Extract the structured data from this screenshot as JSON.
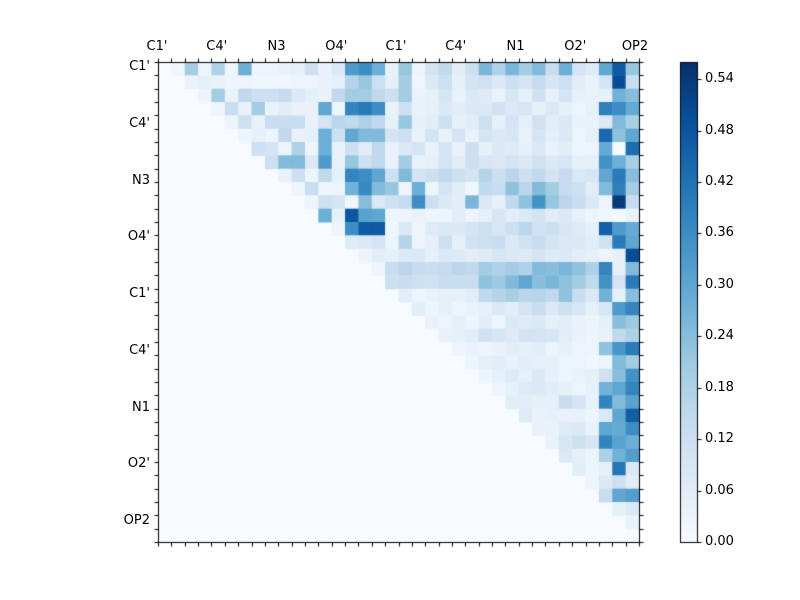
{
  "figure": {
    "background": "#ffffff",
    "axis_color": "#000000",
    "text_color": "#000000"
  },
  "heatmap": {
    "x_tick_labels": [
      "C1'",
      "C4'",
      "N3",
      "O4'",
      "C1'",
      "C4'",
      "N1",
      "O2'",
      "OP2"
    ],
    "y_tick_labels": [
      "C1'",
      "C4'",
      "N3",
      "O4'",
      "C1'",
      "C4'",
      "N1",
      "O2'",
      "OP2"
    ]
  },
  "colorbar": {
    "tick_labels": [
      "0.54",
      "0.48",
      "0.42",
      "0.36",
      "0.30",
      "0.24",
      "0.18",
      "0.12",
      "0.06",
      "0.00"
    ],
    "vmin": 0.0,
    "vmax": 0.56
  },
  "chart_data": {
    "type": "heatmap",
    "title": "",
    "xlabel": "",
    "ylabel": "",
    "colormap": "Blues",
    "colormap_anchors": [
      "#f7fbff",
      "#deebf7",
      "#c6dbef",
      "#9ecae1",
      "#6baed6",
      "#4292c6",
      "#2171b5",
      "#08519c",
      "#08306b"
    ],
    "vmin": 0.0,
    "vmax": 0.56,
    "n_rows": 36,
    "n_cols": 36,
    "matrix_form": "upper-triangular",
    "x_group_labels": [
      "C1'",
      "C4'",
      "N3",
      "O4'",
      "C1'",
      "C4'",
      "N1",
      "O2'",
      "OP2"
    ],
    "y_group_labels": [
      "C1'",
      "C4'",
      "N3",
      "O4'",
      "C1'",
      "C4'",
      "N1",
      "O2'",
      "OP2"
    ],
    "values": [
      [
        0,
        0.02,
        0.2,
        0.03,
        0.18,
        0.03,
        0.28,
        0.03,
        0.03,
        0.04,
        0.05,
        0.12,
        0.04,
        0.08,
        0.33,
        0.36,
        0.28,
        0.04,
        0.22,
        0.03,
        0.1,
        0.15,
        0.06,
        0.12,
        0.26,
        0.18,
        0.26,
        0.2,
        0.25,
        0.13,
        0.28,
        0.1,
        0.07,
        0.3,
        0.47,
        0.22
      ],
      [
        0,
        0,
        0.04,
        0.05,
        0.04,
        0.03,
        0.03,
        0.02,
        0.02,
        0.02,
        0.03,
        0.03,
        0.04,
        0.05,
        0.17,
        0.22,
        0.12,
        0.05,
        0.2,
        0.02,
        0.08,
        0.12,
        0.05,
        0.1,
        0.11,
        0.08,
        0.12,
        0.1,
        0.14,
        0.09,
        0.12,
        0.06,
        0.04,
        0.1,
        0.5,
        0.13
      ],
      [
        0,
        0,
        0,
        0.03,
        0.2,
        0.04,
        0.15,
        0.12,
        0.12,
        0.14,
        0.08,
        0.05,
        0.04,
        0.15,
        0.2,
        0.2,
        0.15,
        0.12,
        0.2,
        0.04,
        0.05,
        0.1,
        0.04,
        0.08,
        0.07,
        0.04,
        0.09,
        0.05,
        0.11,
        0.05,
        0.1,
        0.05,
        0.04,
        0.05,
        0.27,
        0.24
      ],
      [
        0,
        0,
        0,
        0,
        0.03,
        0.13,
        0.04,
        0.2,
        0.04,
        0.06,
        0.04,
        0.04,
        0.3,
        0.03,
        0.38,
        0.4,
        0.36,
        0.04,
        0.12,
        0.04,
        0.05,
        0.08,
        0.06,
        0.08,
        0.08,
        0.11,
        0.08,
        0.09,
        0.05,
        0.08,
        0.05,
        0.03,
        0.05,
        0.39,
        0.36,
        0.29
      ],
      [
        0,
        0,
        0,
        0,
        0,
        0.03,
        0.12,
        0.04,
        0.13,
        0.13,
        0.13,
        0.04,
        0.1,
        0.16,
        0.15,
        0.18,
        0.15,
        0.05,
        0.22,
        0.05,
        0.06,
        0.12,
        0.05,
        0.06,
        0.12,
        0.05,
        0.1,
        0.05,
        0.11,
        0.06,
        0.08,
        0.04,
        0.04,
        0.08,
        0.25,
        0.19
      ],
      [
        0,
        0,
        0,
        0,
        0,
        0,
        0.03,
        0.05,
        0.03,
        0.15,
        0.04,
        0.05,
        0.28,
        0.12,
        0.3,
        0.25,
        0.25,
        0.1,
        0.12,
        0.04,
        0.1,
        0.04,
        0.1,
        0.04,
        0.1,
        0.08,
        0.09,
        0.04,
        0.1,
        0.05,
        0.08,
        0.03,
        0.05,
        0.44,
        0.23,
        0.3
      ],
      [
        0,
        0,
        0,
        0,
        0,
        0,
        0,
        0.12,
        0.1,
        0.03,
        0.18,
        0.03,
        0.28,
        0.04,
        0.12,
        0.06,
        0.15,
        0.04,
        0.08,
        0.1,
        0.04,
        0.1,
        0.04,
        0.12,
        0.05,
        0.08,
        0.07,
        0.05,
        0.08,
        0.04,
        0.06,
        0.03,
        0.03,
        0.29,
        0.01,
        0.43
      ],
      [
        0,
        0,
        0,
        0,
        0,
        0,
        0,
        0,
        0.12,
        0.25,
        0.25,
        0.08,
        0.33,
        0.04,
        0.22,
        0.12,
        0.15,
        0.04,
        0.2,
        0.04,
        0.05,
        0.1,
        0.06,
        0.12,
        0.09,
        0.08,
        0.1,
        0.08,
        0.11,
        0.08,
        0.09,
        0.05,
        0.05,
        0.35,
        0.28,
        0.19
      ],
      [
        0,
        0,
        0,
        0,
        0,
        0,
        0,
        0,
        0,
        0.04,
        0.12,
        0.03,
        0.15,
        0.05,
        0.38,
        0.36,
        0.3,
        0.12,
        0.25,
        0.1,
        0.12,
        0.15,
        0.12,
        0.1,
        0.17,
        0.12,
        0.16,
        0.12,
        0.15,
        0.1,
        0.14,
        0.08,
        0.09,
        0.3,
        0.4,
        0.24
      ],
      [
        0,
        0,
        0,
        0,
        0,
        0,
        0,
        0,
        0,
        0,
        0.03,
        0.13,
        0.03,
        0.03,
        0.27,
        0.37,
        0.25,
        0.22,
        0.03,
        0.28,
        0.03,
        0.1,
        0.06,
        0.02,
        0.15,
        0.13,
        0.23,
        0.16,
        0.25,
        0.2,
        0.14,
        0.12,
        0.06,
        0.25,
        0.39,
        0.2
      ],
      [
        0,
        0,
        0,
        0,
        0,
        0,
        0,
        0,
        0,
        0,
        0,
        0.03,
        0.12,
        0.1,
        0.02,
        0.24,
        0.08,
        0.11,
        0.14,
        0.36,
        0.12,
        0.08,
        0.06,
        0.26,
        0.08,
        0.05,
        0.15,
        0.23,
        0.35,
        0.22,
        0.16,
        0.13,
        0.08,
        0.03,
        0.54,
        0.14
      ],
      [
        0,
        0,
        0,
        0,
        0,
        0,
        0,
        0,
        0,
        0,
        0,
        0,
        0.28,
        0.05,
        0.48,
        0.31,
        0.3,
        0.03,
        0.03,
        0.04,
        0.03,
        0.03,
        0.06,
        0.03,
        0.05,
        0.09,
        0.06,
        0.08,
        0.1,
        0.06,
        0.08,
        0.05,
        0.03,
        0.02,
        0.01,
        0.04
      ],
      [
        0,
        0,
        0,
        0,
        0,
        0,
        0,
        0,
        0,
        0,
        0,
        0,
        0,
        0.03,
        0.36,
        0.47,
        0.47,
        0.02,
        0.08,
        0.03,
        0.07,
        0.08,
        0.08,
        0.1,
        0.12,
        0.09,
        0.12,
        0.16,
        0.11,
        0.12,
        0.09,
        0.07,
        0.05,
        0.46,
        0.33,
        0.29
      ],
      [
        0,
        0,
        0,
        0,
        0,
        0,
        0,
        0,
        0,
        0,
        0,
        0,
        0,
        0,
        0.07,
        0.08,
        0.1,
        0.03,
        0.17,
        0.03,
        0.05,
        0.12,
        0.05,
        0.11,
        0.12,
        0.13,
        0.08,
        0.11,
        0.13,
        0.1,
        0.08,
        0.08,
        0.06,
        0.11,
        0.4,
        0.3
      ],
      [
        0,
        0,
        0,
        0,
        0,
        0,
        0,
        0,
        0,
        0,
        0,
        0,
        0,
        0,
        0,
        0.03,
        0.06,
        0.05,
        0.08,
        0.08,
        0.05,
        0.08,
        0.07,
        0.06,
        0.07,
        0.09,
        0.08,
        0.07,
        0.1,
        0.07,
        0.08,
        0.06,
        0.05,
        0.03,
        0.05,
        0.5
      ],
      [
        0,
        0,
        0,
        0,
        0,
        0,
        0,
        0,
        0,
        0,
        0,
        0,
        0,
        0,
        0,
        0,
        0.03,
        0.13,
        0.16,
        0.14,
        0.13,
        0.14,
        0.16,
        0.15,
        0.2,
        0.18,
        0.2,
        0.18,
        0.25,
        0.24,
        0.26,
        0.23,
        0.18,
        0.38,
        0.05,
        0.25
      ],
      [
        0,
        0,
        0,
        0,
        0,
        0,
        0,
        0,
        0,
        0,
        0,
        0,
        0,
        0,
        0,
        0,
        0,
        0.12,
        0.13,
        0.12,
        0.11,
        0.13,
        0.13,
        0.13,
        0.23,
        0.21,
        0.25,
        0.3,
        0.24,
        0.26,
        0.23,
        0.2,
        0.15,
        0.35,
        0.1,
        0.4
      ],
      [
        0,
        0,
        0,
        0,
        0,
        0,
        0,
        0,
        0,
        0,
        0,
        0,
        0,
        0,
        0,
        0,
        0,
        0,
        0.06,
        0.03,
        0.04,
        0.05,
        0.05,
        0.06,
        0.15,
        0.17,
        0.19,
        0.16,
        0.17,
        0.15,
        0.23,
        0.13,
        0.08,
        0.27,
        0.05,
        0.24
      ],
      [
        0,
        0,
        0,
        0,
        0,
        0,
        0,
        0,
        0,
        0,
        0,
        0,
        0,
        0,
        0,
        0,
        0,
        0,
        0,
        0.06,
        0.03,
        0.05,
        0.03,
        0.04,
        0.05,
        0.08,
        0.06,
        0.1,
        0.13,
        0.08,
        0.12,
        0.09,
        0.05,
        0.09,
        0.33,
        0.38
      ],
      [
        0,
        0,
        0,
        0,
        0,
        0,
        0,
        0,
        0,
        0,
        0,
        0,
        0,
        0,
        0,
        0,
        0,
        0,
        0,
        0,
        0.04,
        0.03,
        0.05,
        0.03,
        0.06,
        0.03,
        0.08,
        0.07,
        0.08,
        0.05,
        0.06,
        0.04,
        0.03,
        0.05,
        0.24,
        0.21
      ],
      [
        0,
        0,
        0,
        0,
        0,
        0,
        0,
        0,
        0,
        0,
        0,
        0,
        0,
        0,
        0,
        0,
        0,
        0,
        0,
        0,
        0,
        0.04,
        0.05,
        0.06,
        0.11,
        0.09,
        0.07,
        0.1,
        0.1,
        0.09,
        0.06,
        0.04,
        0.03,
        0.04,
        0.15,
        0.18
      ],
      [
        0,
        0,
        0,
        0,
        0,
        0,
        0,
        0,
        0,
        0,
        0,
        0,
        0,
        0,
        0,
        0,
        0,
        0,
        0,
        0,
        0,
        0,
        0.03,
        0.04,
        0.03,
        0.04,
        0.06,
        0.05,
        0.06,
        0.03,
        0.05,
        0.03,
        0.03,
        0.23,
        0.34,
        0.4
      ],
      [
        0,
        0,
        0,
        0,
        0,
        0,
        0,
        0,
        0,
        0,
        0,
        0,
        0,
        0,
        0,
        0,
        0,
        0,
        0,
        0,
        0,
        0,
        0,
        0.03,
        0.05,
        0.06,
        0.04,
        0.06,
        0.05,
        0.05,
        0.03,
        0.03,
        0.02,
        0.03,
        0.25,
        0.2
      ],
      [
        0,
        0,
        0,
        0,
        0,
        0,
        0,
        0,
        0,
        0,
        0,
        0,
        0,
        0,
        0,
        0,
        0,
        0,
        0,
        0,
        0,
        0,
        0,
        0,
        0.03,
        0.05,
        0.07,
        0.05,
        0.08,
        0.05,
        0.03,
        0.04,
        0.05,
        0.11,
        0.24,
        0.35
      ],
      [
        0,
        0,
        0,
        0,
        0,
        0,
        0,
        0,
        0,
        0,
        0,
        0,
        0,
        0,
        0,
        0,
        0,
        0,
        0,
        0,
        0,
        0,
        0,
        0,
        0,
        0.03,
        0.05,
        0.07,
        0.08,
        0.06,
        0.05,
        0.03,
        0.05,
        0.27,
        0.3,
        0.38
      ],
      [
        0,
        0,
        0,
        0,
        0,
        0,
        0,
        0,
        0,
        0,
        0,
        0,
        0,
        0,
        0,
        0,
        0,
        0,
        0,
        0,
        0,
        0,
        0,
        0,
        0,
        0,
        0.06,
        0.06,
        0.05,
        0.05,
        0.13,
        0.1,
        0.04,
        0.38,
        0.25,
        0.31
      ],
      [
        0,
        0,
        0,
        0,
        0,
        0,
        0,
        0,
        0,
        0,
        0,
        0,
        0,
        0,
        0,
        0,
        0,
        0,
        0,
        0,
        0,
        0,
        0,
        0,
        0,
        0,
        0,
        0.07,
        0.04,
        0.05,
        0.04,
        0.04,
        0.03,
        0.08,
        0.3,
        0.46
      ],
      [
        0,
        0,
        0,
        0,
        0,
        0,
        0,
        0,
        0,
        0,
        0,
        0,
        0,
        0,
        0,
        0,
        0,
        0,
        0,
        0,
        0,
        0,
        0,
        0,
        0,
        0,
        0,
        0,
        0.04,
        0.04,
        0.07,
        0.08,
        0.04,
        0.3,
        0.29,
        0.36
      ],
      [
        0,
        0,
        0,
        0,
        0,
        0,
        0,
        0,
        0,
        0,
        0,
        0,
        0,
        0,
        0,
        0,
        0,
        0,
        0,
        0,
        0,
        0,
        0,
        0,
        0,
        0,
        0,
        0,
        0,
        0.04,
        0.09,
        0.12,
        0.09,
        0.38,
        0.31,
        0.28
      ],
      [
        0,
        0,
        0,
        0,
        0,
        0,
        0,
        0,
        0,
        0,
        0,
        0,
        0,
        0,
        0,
        0,
        0,
        0,
        0,
        0,
        0,
        0,
        0,
        0,
        0,
        0,
        0,
        0,
        0,
        0,
        0.08,
        0.05,
        0.03,
        0.18,
        0.27,
        0.32
      ],
      [
        0,
        0,
        0,
        0,
        0,
        0,
        0,
        0,
        0,
        0,
        0,
        0,
        0,
        0,
        0,
        0,
        0,
        0,
        0,
        0,
        0,
        0,
        0,
        0,
        0,
        0,
        0,
        0,
        0,
        0,
        0,
        0.06,
        0.03,
        0.05,
        0.41,
        0.08
      ],
      [
        0,
        0,
        0,
        0,
        0,
        0,
        0,
        0,
        0,
        0,
        0,
        0,
        0,
        0,
        0,
        0,
        0,
        0,
        0,
        0,
        0,
        0,
        0,
        0,
        0,
        0,
        0,
        0,
        0,
        0,
        0,
        0,
        0.03,
        0.08,
        0.12,
        0.06
      ],
      [
        0,
        0,
        0,
        0,
        0,
        0,
        0,
        0,
        0,
        0,
        0,
        0,
        0,
        0,
        0,
        0,
        0,
        0,
        0,
        0,
        0,
        0,
        0,
        0,
        0,
        0,
        0,
        0,
        0,
        0,
        0,
        0,
        0,
        0.13,
        0.3,
        0.32
      ],
      [
        0,
        0,
        0,
        0,
        0,
        0,
        0,
        0,
        0,
        0,
        0,
        0,
        0,
        0,
        0,
        0,
        0,
        0,
        0,
        0,
        0,
        0,
        0,
        0,
        0,
        0,
        0,
        0,
        0,
        0,
        0,
        0,
        0,
        0,
        0.05,
        0.08
      ],
      [
        0,
        0,
        0,
        0,
        0,
        0,
        0,
        0,
        0,
        0,
        0,
        0,
        0,
        0,
        0,
        0,
        0,
        0,
        0,
        0,
        0,
        0,
        0,
        0,
        0,
        0,
        0,
        0,
        0,
        0,
        0,
        0,
        0,
        0,
        0,
        0.04
      ],
      [
        0,
        0,
        0,
        0,
        0,
        0,
        0,
        0,
        0,
        0,
        0,
        0,
        0,
        0,
        0,
        0,
        0,
        0,
        0,
        0,
        0,
        0,
        0,
        0,
        0,
        0,
        0,
        0,
        0,
        0,
        0,
        0,
        0,
        0,
        0,
        0
      ]
    ]
  }
}
